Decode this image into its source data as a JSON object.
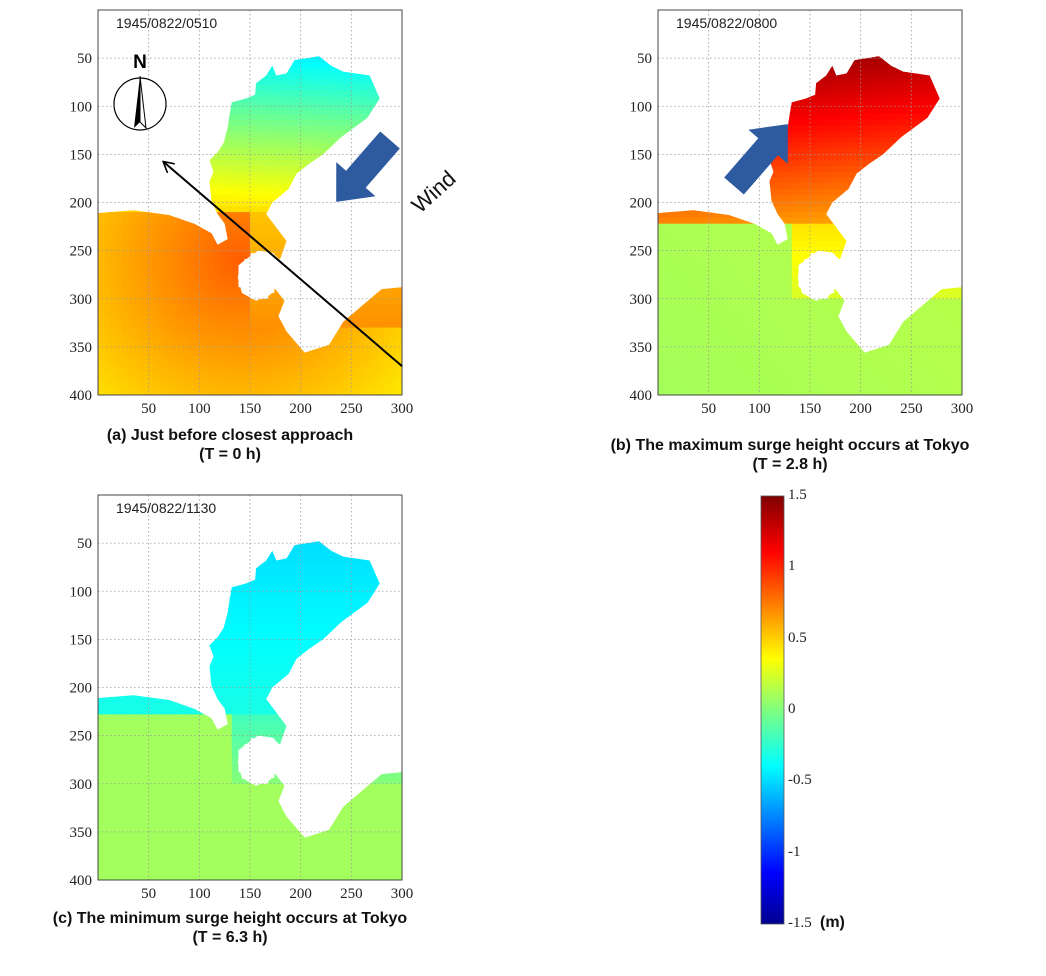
{
  "chart_data": [
    {
      "type": "heatmap",
      "panel": "a",
      "timestamp": "1945/0822/0510",
      "caption_line1": "(a) Just before closest approach",
      "caption_line2": "(T = 0 h)",
      "x_ticks": [
        50,
        100,
        150,
        200,
        250,
        300
      ],
      "y_ticks": [
        50,
        100,
        150,
        200,
        250,
        300,
        350,
        400
      ],
      "xlim": [
        0,
        300
      ],
      "ylim": [
        0,
        400
      ],
      "y_inverted": true,
      "grid": true,
      "surge_range_m": {
        "inner_bay": -0.1,
        "bay_mouth": 0.6,
        "outer_sea": [
          0.5,
          0.8
        ]
      },
      "annotations": {
        "north_arrow_label": "N",
        "wind_label": "Wind",
        "wind_direction": "toward south-west"
      }
    },
    {
      "type": "heatmap",
      "panel": "b",
      "timestamp": "1945/0822/0800",
      "caption_line1": "(b) The maximum surge height occurs at Tokyo",
      "caption_line2": "(T = 2.8 h)",
      "x_ticks": [
        50,
        100,
        150,
        200,
        250,
        300
      ],
      "y_ticks": [
        50,
        100,
        150,
        200,
        250,
        300,
        350,
        400
      ],
      "xlim": [
        0,
        300
      ],
      "ylim": [
        0,
        400
      ],
      "y_inverted": true,
      "grid": true,
      "surge_range_m": {
        "inner_bay": 1.3,
        "bay_mouth": 0.4,
        "outer_sea": [
          0.1,
          0.25
        ]
      },
      "annotations": {
        "wind_direction": "toward north-east"
      }
    },
    {
      "type": "heatmap",
      "panel": "c",
      "timestamp": "1945/0822/1130",
      "caption_line1": "(c) The minimum surge height occurs at Tokyo",
      "caption_line2": "(T = 6.3 h)",
      "x_ticks": [
        50,
        100,
        150,
        200,
        250,
        300
      ],
      "y_ticks": [
        50,
        100,
        150,
        200,
        250,
        300,
        350,
        400
      ],
      "xlim": [
        0,
        300
      ],
      "ylim": [
        0,
        400
      ],
      "y_inverted": true,
      "grid": true,
      "surge_range_m": {
        "inner_bay": -0.5,
        "bay_mouth": -0.1,
        "outer_sea": [
          0.1,
          0.1
        ]
      }
    }
  ],
  "colorbar": {
    "min": -1.5,
    "max": 1.5,
    "ticks": [
      "1.5",
      "1",
      "0.5",
      "0",
      "-0.5",
      "-1",
      "-1.5"
    ],
    "unit": "(m)",
    "colormap": "jet",
    "colors": [
      "#00008f",
      "#0000ff",
      "#00ffff",
      "#ffff00",
      "#ff0000",
      "#800000"
    ]
  }
}
